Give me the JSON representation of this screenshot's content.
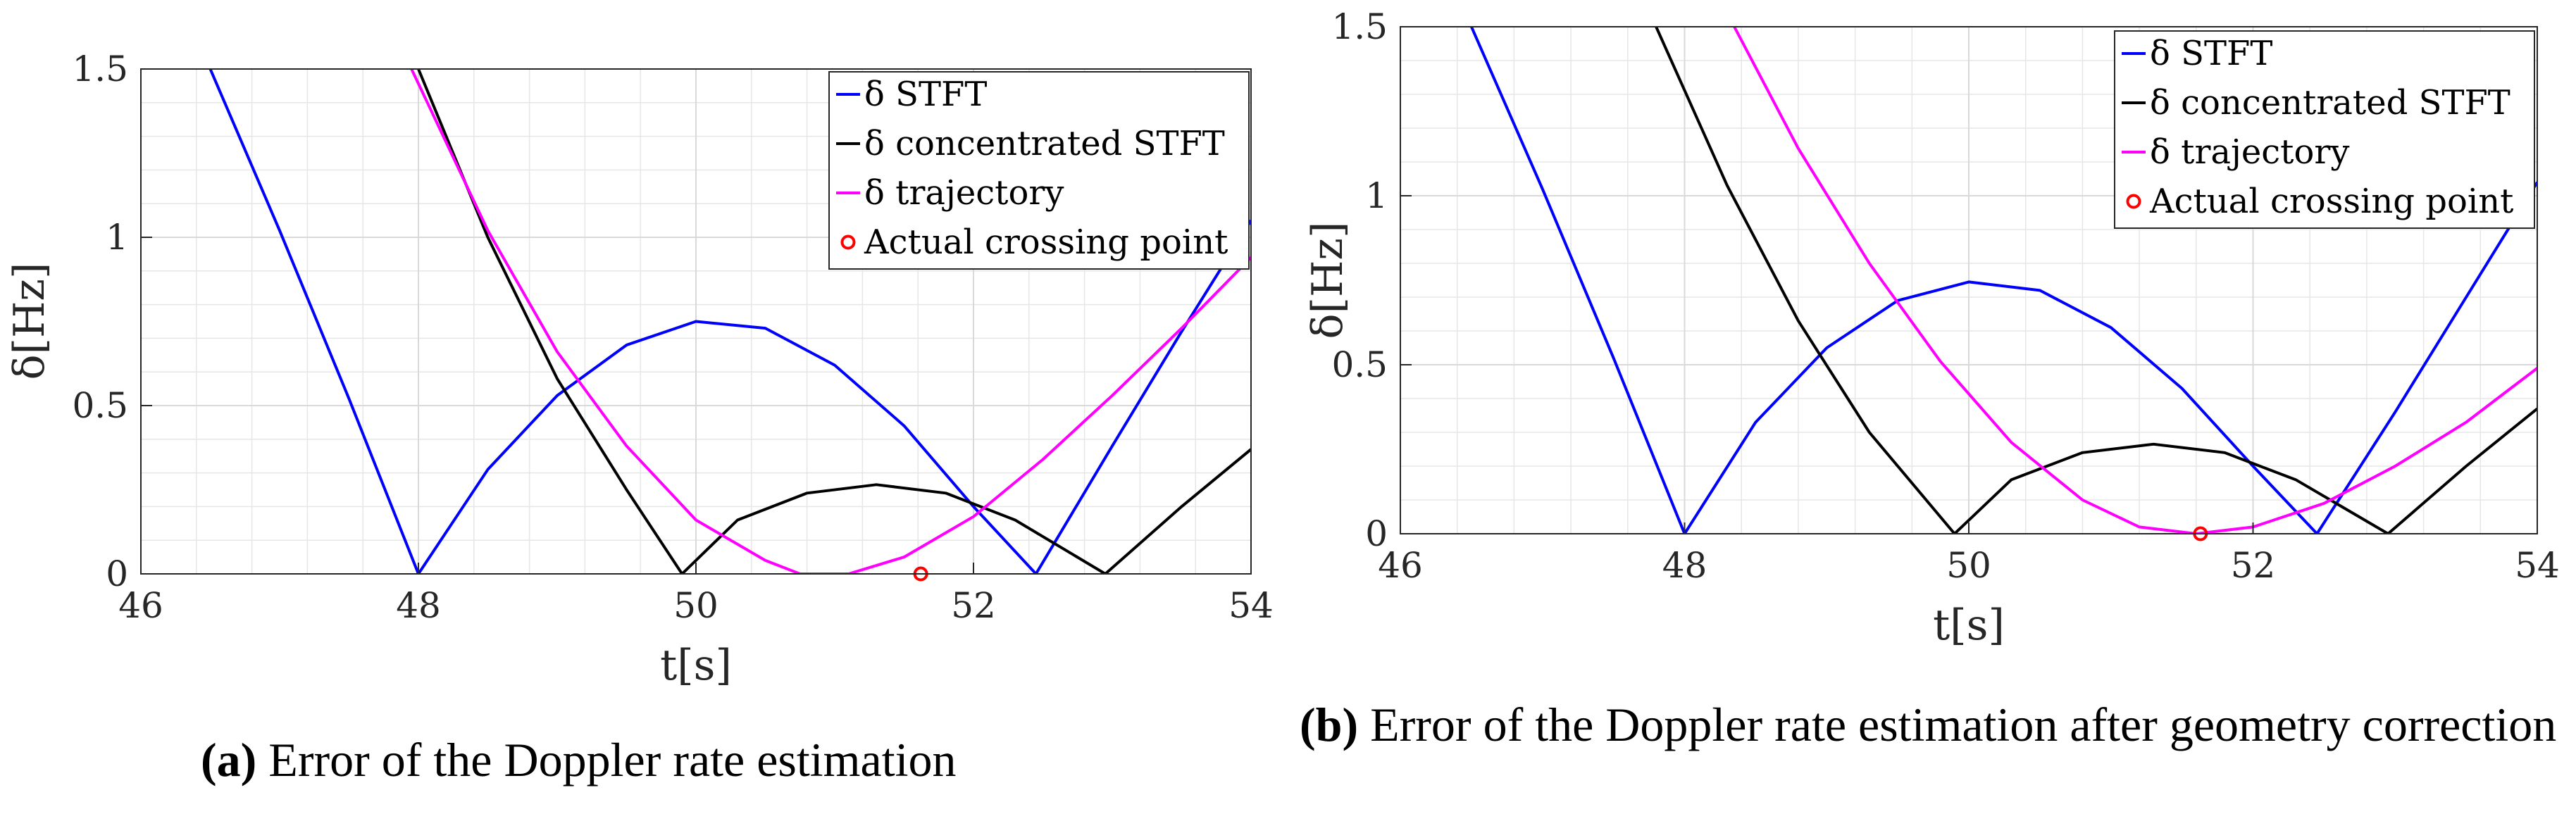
{
  "colors": {
    "stft": "#0000ff",
    "concentrated": "#000000",
    "trajectory": "#ff00ff",
    "crossing": "#ff0000"
  },
  "chart_data": [
    {
      "type": "line",
      "panel": "a",
      "caption_label": "(a)",
      "caption_text": "Error of the Doppler rate estimation",
      "xlabel": "t[s]",
      "ylabel": "δ[Hz]",
      "xlim": [
        46,
        54
      ],
      "ylim": [
        0,
        1.5
      ],
      "xticks": [
        "46",
        "48",
        "50",
        "52",
        "54"
      ],
      "yticks": [
        "0",
        "0.5",
        "1",
        "1.5"
      ],
      "grid": true,
      "legend_position": "top-right",
      "series": [
        {
          "name": "δ STFT",
          "color": "#0000ff",
          "x": [
            46.5,
            47.0,
            47.5,
            48.0,
            48.5,
            49.0,
            49.5,
            50.0,
            50.5,
            51.0,
            51.5,
            52.0,
            52.45,
            53.0,
            53.5,
            54.0
          ],
          "y": [
            1.5,
            1.02,
            0.52,
            0.0,
            0.31,
            0.53,
            0.68,
            0.75,
            0.73,
            0.62,
            0.44,
            0.2,
            0.0,
            0.38,
            0.72,
            1.05
          ]
        },
        {
          "name": "δ concentrated STFT",
          "color": "#000000",
          "x": [
            48.0,
            48.5,
            49.0,
            49.5,
            49.9,
            50.3,
            50.8,
            51.3,
            51.8,
            52.3,
            52.95,
            53.5,
            54.0
          ],
          "y": [
            1.5,
            1.0,
            0.58,
            0.25,
            0.0,
            0.16,
            0.24,
            0.265,
            0.24,
            0.16,
            0.0,
            0.2,
            0.37
          ]
        },
        {
          "name": "δ trajectory",
          "color": "#ff00ff",
          "x": [
            47.95,
            48.5,
            49.0,
            49.5,
            50.0,
            50.5,
            50.75,
            51.1,
            51.5,
            52.0,
            52.5,
            53.0,
            53.5,
            54.0
          ],
          "y": [
            1.5,
            1.02,
            0.66,
            0.38,
            0.16,
            0.04,
            0.0,
            0.0,
            0.05,
            0.17,
            0.34,
            0.53,
            0.73,
            0.94
          ]
        }
      ],
      "points": [
        {
          "name": "Actual crossing point",
          "x": 51.62,
          "y": 0.0
        }
      ]
    },
    {
      "type": "line",
      "panel": "b",
      "caption_label": "(b)",
      "caption_text": "Error of the Doppler rate estimation after geometry correction",
      "xlabel": "t[s]",
      "ylabel": "δ[Hz]",
      "xlim": [
        46,
        54
      ],
      "ylim": [
        0,
        1.5
      ],
      "xticks": [
        "46",
        "48",
        "50",
        "52",
        "54"
      ],
      "yticks": [
        "0",
        "0.5",
        "1",
        "1.5"
      ],
      "grid": true,
      "legend_position": "top-right",
      "series": [
        {
          "name": "δ STFT",
          "color": "#0000ff",
          "x": [
            46.5,
            47.0,
            47.5,
            48.0,
            48.5,
            49.0,
            49.5,
            50.0,
            50.5,
            51.0,
            51.5,
            52.0,
            52.45,
            53.0,
            53.5,
            54.0
          ],
          "y": [
            1.5,
            1.02,
            0.52,
            0.0,
            0.33,
            0.55,
            0.69,
            0.745,
            0.72,
            0.61,
            0.43,
            0.2,
            0.0,
            0.36,
            0.7,
            1.04
          ]
        },
        {
          "name": "δ concentrated STFT",
          "color": "#000000",
          "x": [
            47.8,
            48.3,
            48.8,
            49.3,
            49.9,
            50.3,
            50.8,
            51.3,
            51.8,
            52.3,
            52.95,
            53.5,
            54.0
          ],
          "y": [
            1.5,
            1.03,
            0.63,
            0.3,
            0.0,
            0.16,
            0.24,
            0.265,
            0.24,
            0.16,
            0.0,
            0.2,
            0.37
          ]
        },
        {
          "name": "δ trajectory",
          "color": "#ff00ff",
          "x": [
            48.35,
            48.8,
            49.3,
            49.8,
            50.3,
            50.8,
            51.2,
            51.6,
            52.0,
            52.5,
            53.0,
            53.5,
            54.0
          ],
          "y": [
            1.5,
            1.14,
            0.8,
            0.51,
            0.27,
            0.1,
            0.02,
            0.0,
            0.02,
            0.09,
            0.2,
            0.33,
            0.49
          ]
        }
      ],
      "points": [
        {
          "name": "Actual crossing point",
          "x": 51.63,
          "y": 0.0
        }
      ]
    }
  ]
}
